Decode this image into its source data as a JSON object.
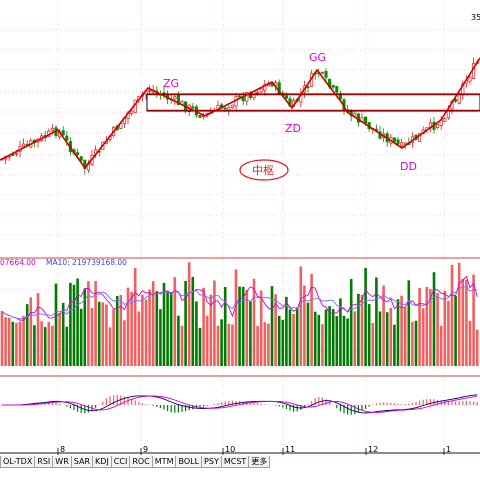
{
  "chart_data": [
    {
      "type": "candlestick",
      "panel": "price",
      "corner_label": "35",
      "annotations": {
        "ZG": "ZG",
        "GG": "GG",
        "ZD": "ZD",
        "DD": "DD",
        "pivot": "中枢"
      },
      "pivot_zone": {
        "ZG": 94,
        "ZD": 111
      },
      "stroke_points": [
        [
          0,
          160
        ],
        [
          58,
          130
        ],
        [
          85,
          168
        ],
        [
          148,
          88
        ],
        [
          205,
          116
        ],
        [
          272,
          82
        ],
        [
          292,
          108
        ],
        [
          317,
          70
        ],
        [
          342,
          103
        ],
        [
          347,
          112
        ],
        [
          402,
          148
        ],
        [
          441,
          120
        ],
        [
          480,
          58
        ]
      ],
      "colors": {
        "up": "#e8181c",
        "down": "#009000",
        "stroke": "#cc0000",
        "label": "#e000e0",
        "grid": "#c00000"
      }
    },
    {
      "type": "bar",
      "panel": "volume",
      "header": "07664.00  MA10: 219739168.00",
      "header_ma": "07664.00",
      "header_ma10": "MA10: 219739168.00",
      "colors": {
        "up": "#f06060",
        "down": "#007a00",
        "ma5": "#d200d2",
        "ma10": "#7070ff"
      }
    },
    {
      "type": "bar",
      "panel": "macd",
      "colors": {
        "up": "#f06060",
        "down": "#007a00",
        "dif": "#000080",
        "dea": "#d200d2"
      }
    }
  ],
  "x_axis": {
    "labels": [
      "8",
      "9",
      "10",
      "11",
      "12",
      "1"
    ]
  },
  "tabs": [
    "OL-TDX",
    "RSI",
    "WR",
    "SAR",
    "KDJ",
    "CCI",
    "ROC",
    "MTM",
    "BOLL",
    "PSY",
    "MCST",
    "更多"
  ],
  "active_tab": "MTM"
}
